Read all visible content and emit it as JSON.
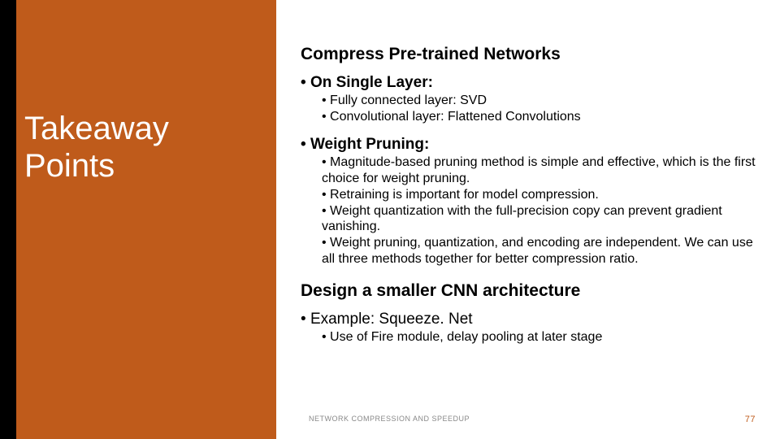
{
  "colors": {
    "sidebar_bg": "#bf5b1b",
    "sidebar_stripe": "#000000",
    "sidebar_text": "#ffffff",
    "body_text": "#000000",
    "footer_text": "#888888",
    "page_num": "#bf5b1b"
  },
  "sidebar": {
    "title_line1": "Takeaway",
    "title_line2": "Points"
  },
  "content": {
    "heading1": "Compress Pre-trained Networks",
    "single_layer": {
      "label": "On Single Layer:",
      "items": [
        "Fully connected layer: SVD",
        "Convolutional layer: Flattened Convolutions"
      ]
    },
    "weight_pruning": {
      "label": "Weight Pruning:",
      "items": [
        "Magnitude-based pruning method is simple and effective, which is the first choice for weight pruning.",
        "Retraining is important for model compression.",
        "Weight quantization with the full-precision copy can prevent gradient vanishing.",
        "Weight pruning, quantization, and encoding are independent. We can use all three methods together for better compression ratio."
      ]
    },
    "heading2": "Design a smaller CNN architecture",
    "example": {
      "label": "Example: Squeeze. Net",
      "items": [
        "Use of Fire module, delay pooling at later stage"
      ]
    }
  },
  "footer": {
    "text": "NETWORK COMPRESSION AND SPEEDUP",
    "page": "77"
  }
}
